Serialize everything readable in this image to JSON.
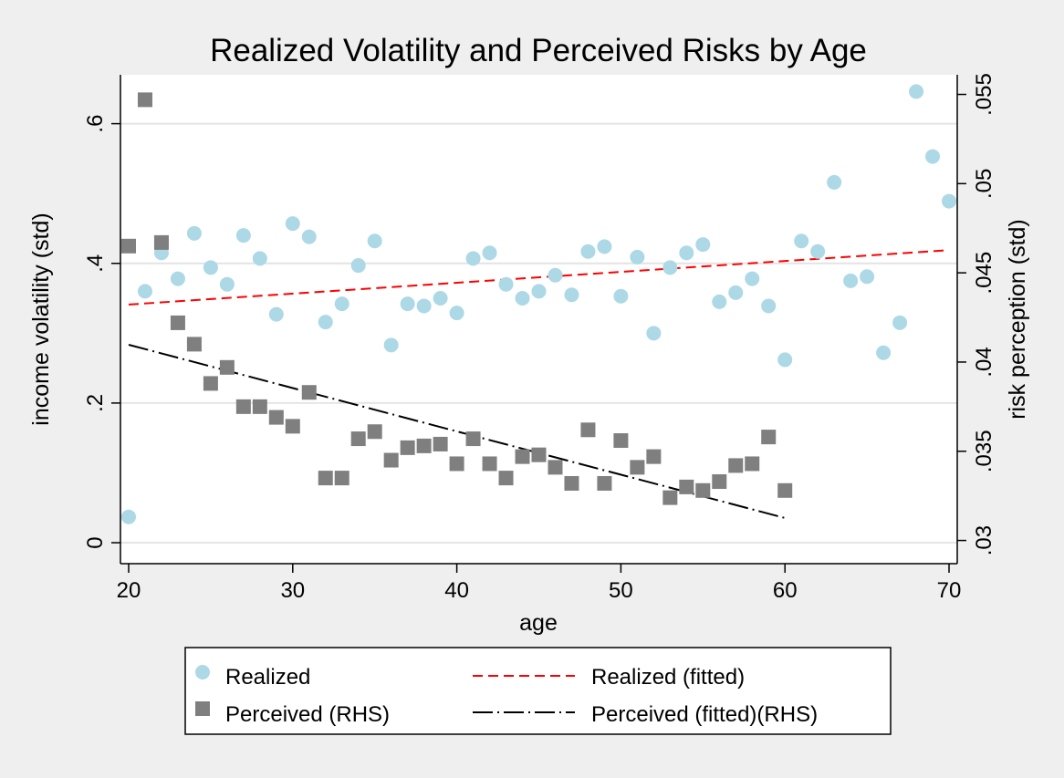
{
  "chart_data": {
    "type": "scatter",
    "title": "Realized Volatility and Perceived Risks by Age",
    "xlabel": "age",
    "ylabel": "income volatility (std)",
    "y2label": "risk perception (std)",
    "xlim": [
      19.5,
      70.5
    ],
    "ylim": [
      -0.03,
      0.67
    ],
    "y2lim": [
      0.0287,
      0.0561
    ],
    "xticks": [
      20,
      30,
      40,
      50,
      60,
      70
    ],
    "xtick_labels": [
      "20",
      "30",
      "40",
      "50",
      "60",
      "70"
    ],
    "yticks": [
      0,
      0.2,
      0.4,
      0.6
    ],
    "ytick_labels": [
      "0",
      ".2",
      ".4",
      ".6"
    ],
    "y2ticks": [
      0.03,
      0.035,
      0.04,
      0.045,
      0.05,
      0.055
    ],
    "y2tick_labels": [
      ".03",
      ".035",
      ".04",
      ".045",
      ".05",
      ".055"
    ],
    "grid": true,
    "legend_position": "bottom",
    "series": [
      {
        "name": "Realized",
        "kind": "scatter-circle",
        "axis": "left",
        "color": "#add8e6",
        "x": [
          20,
          21,
          22,
          23,
          24,
          25,
          26,
          27,
          28,
          29,
          30,
          31,
          32,
          33,
          34,
          35,
          36,
          37,
          38,
          39,
          40,
          41,
          42,
          43,
          44,
          45,
          46,
          47,
          48,
          49,
          50,
          51,
          52,
          53,
          54,
          55,
          56,
          57,
          58,
          59,
          60,
          61,
          62,
          63,
          64,
          65,
          66,
          67,
          68,
          69,
          70
        ],
        "y": [
          0.037,
          0.36,
          0.415,
          0.378,
          0.443,
          0.394,
          0.37,
          0.44,
          0.407,
          0.327,
          0.457,
          0.438,
          0.316,
          0.342,
          0.397,
          0.432,
          0.283,
          0.342,
          0.339,
          0.35,
          0.329,
          0.407,
          0.415,
          0.37,
          0.35,
          0.36,
          0.383,
          0.355,
          0.417,
          0.424,
          0.353,
          0.409,
          0.3,
          0.394,
          0.415,
          0.427,
          0.345,
          0.358,
          0.378,
          0.339,
          0.262,
          0.432,
          0.417,
          0.516,
          0.375,
          0.381,
          0.272,
          0.315,
          0.646,
          0.553,
          0.489
        ]
      },
      {
        "name": "Perceived (RHS)",
        "kind": "scatter-square",
        "axis": "right",
        "color": "#7f7f7f",
        "x": [
          20,
          21,
          22,
          23,
          24,
          25,
          26,
          27,
          28,
          29,
          30,
          31,
          32,
          33,
          34,
          35,
          36,
          37,
          38,
          39,
          40,
          41,
          42,
          43,
          44,
          45,
          46,
          47,
          48,
          49,
          50,
          51,
          52,
          53,
          54,
          55,
          56,
          57,
          58,
          59,
          60
        ],
        "y": [
          0.0465,
          0.0547,
          0.0467,
          0.0422,
          0.041,
          0.0388,
          0.0397,
          0.0375,
          0.0375,
          0.0369,
          0.0364,
          0.0383,
          0.0335,
          0.0335,
          0.0357,
          0.0361,
          0.0345,
          0.0352,
          0.0353,
          0.0354,
          0.0343,
          0.0357,
          0.0343,
          0.0335,
          0.0347,
          0.0348,
          0.0341,
          0.0332,
          0.0362,
          0.0332,
          0.0356,
          0.0341,
          0.0347,
          0.0324,
          0.033,
          0.0328,
          0.0333,
          0.0342,
          0.0343,
          0.0358,
          0.0328
        ]
      },
      {
        "name": "Realized (fitted)",
        "kind": "line-dashed",
        "axis": "left",
        "color": "#ff0000",
        "x": [
          20,
          70
        ],
        "y": [
          0.341,
          0.419
        ]
      },
      {
        "name": "Perceived (fitted)(RHS)",
        "kind": "line-dashdot",
        "axis": "right",
        "color": "#000000",
        "x": [
          20,
          60
        ],
        "y": [
          0.04097,
          0.03126
        ]
      }
    ]
  }
}
